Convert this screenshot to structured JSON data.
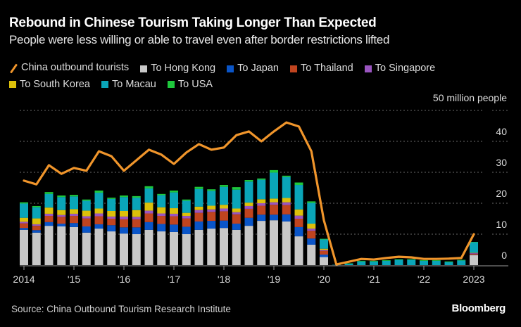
{
  "header": {
    "title": "Rebound in Chinese Tourism Taking Longer Than Expected",
    "subtitle": "People were less willing or able to travel even after border restrictions lifted"
  },
  "legend": [
    {
      "key": "line",
      "label": "China outbound tourists",
      "color": "#f0952b",
      "kind": "line"
    },
    {
      "key": "hk",
      "label": "To Hong Kong",
      "color": "#c8c8c8",
      "kind": "bar"
    },
    {
      "key": "japan",
      "label": "To Japan",
      "color": "#0a55c8",
      "kind": "bar"
    },
    {
      "key": "thailand",
      "label": "To Thailand",
      "color": "#c0441f",
      "kind": "bar"
    },
    {
      "key": "singapore",
      "label": "To Singapore",
      "color": "#9a55c0",
      "kind": "bar"
    },
    {
      "key": "korea",
      "label": "To South Korea",
      "color": "#dcc00a",
      "kind": "bar"
    },
    {
      "key": "macau",
      "label": "To Macau",
      "color": "#0aa5b8",
      "kind": "bar"
    },
    {
      "key": "usa",
      "label": "To USA",
      "color": "#1ec83c",
      "kind": "bar"
    }
  ],
  "footer": {
    "source": "Source: China Outbound Tourism Research Institute",
    "brand": "Bloomberg"
  },
  "chart_data": {
    "type": "bar",
    "subtype": "stacked bar with line overlay",
    "title": "Rebound in Chinese Tourism Taking Longer Than Expected",
    "subtitle": "People were less willing or able to travel even after border restrictions lifted",
    "xlabel": "",
    "ylabel": "million people",
    "unit_label": "50 million people",
    "ylim": [
      0,
      50
    ],
    "yticks": [
      0,
      10,
      20,
      30,
      40,
      50
    ],
    "ytick_labels": [
      "0",
      "10",
      "20",
      "30",
      "40",
      "50 million people"
    ],
    "grid": true,
    "legend_position": "top-left",
    "xtick_labels": [
      "2014",
      "'15",
      "'16",
      "'17",
      "'18",
      "'19",
      "'20",
      "'21",
      "'22",
      "2023"
    ],
    "categories": [
      "2014 Q1",
      "2014 Q2",
      "2014 Q3",
      "2014 Q4",
      "2015 Q1",
      "2015 Q2",
      "2015 Q3",
      "2015 Q4",
      "2016 Q1",
      "2016 Q2",
      "2016 Q3",
      "2016 Q4",
      "2017 Q1",
      "2017 Q2",
      "2017 Q3",
      "2017 Q4",
      "2018 Q1",
      "2018 Q2",
      "2018 Q3",
      "2018 Q4",
      "2019 Q1",
      "2019 Q2",
      "2019 Q3",
      "2019 Q4",
      "2020 Q1",
      "2020 Q2",
      "2020 Q3",
      "2020 Q4",
      "2021 Q1",
      "2021 Q2",
      "2021 Q3",
      "2021 Q4",
      "2022 Q1",
      "2022 Q2",
      "2022 Q3",
      "2022 Q4",
      "2023 Q1"
    ],
    "series": [
      {
        "name": "To Hong Kong",
        "key": "hk",
        "values": [
          11.4,
          10.5,
          12.7,
          12.5,
          12.3,
          10.5,
          11.8,
          10.9,
          10.2,
          10.0,
          11.4,
          10.9,
          10.7,
          10.0,
          11.4,
          11.8,
          12.0,
          11.4,
          12.7,
          14.3,
          14.5,
          14.1,
          9.3,
          6.6,
          2.6,
          0,
          0,
          0,
          0,
          0,
          0,
          0,
          0,
          0,
          0,
          0,
          3.2
        ]
      },
      {
        "name": "To Japan",
        "key": "japan",
        "values": [
          0.6,
          0.8,
          1.2,
          0.9,
          1.3,
          2.0,
          1.4,
          2.0,
          2.0,
          2.2,
          2.5,
          2.4,
          2.4,
          2.4,
          2.7,
          2.5,
          2.4,
          2.0,
          2.6,
          2.0,
          1.8,
          2.3,
          3.0,
          2.0,
          0.8,
          0,
          0,
          0,
          0,
          0,
          0,
          0,
          0,
          0,
          0,
          0,
          0.1
        ]
      },
      {
        "name": "To Thailand",
        "key": "thailand",
        "values": [
          1.5,
          1.4,
          2.0,
          2.2,
          2.3,
          2.6,
          2.6,
          2.1,
          2.6,
          2.6,
          2.8,
          2.6,
          2.7,
          2.7,
          2.8,
          2.9,
          3.0,
          3.0,
          2.9,
          2.9,
          3.2,
          3.0,
          2.7,
          2.5,
          1.2,
          0,
          0,
          0,
          0,
          0,
          0,
          0,
          0,
          0,
          0,
          0,
          0.4
        ]
      },
      {
        "name": "To Singapore",
        "key": "singapore",
        "values": [
          0.5,
          0.5,
          0.7,
          0.6,
          0.7,
          0.7,
          0.9,
          0.7,
          0.9,
          0.8,
          0.9,
          0.8,
          0.8,
          0.8,
          0.9,
          0.8,
          0.9,
          0.7,
          0.9,
          0.8,
          0.8,
          0.9,
          1.0,
          0.7,
          0.3,
          0,
          0,
          0,
          0,
          0,
          0,
          0,
          0,
          0,
          0,
          0,
          0.2
        ]
      },
      {
        "name": "To South Korea",
        "key": "korea",
        "values": [
          1.3,
          1.9,
          2.0,
          1.6,
          1.5,
          1.8,
          1.6,
          1.8,
          1.8,
          2.2,
          2.6,
          2.0,
          1.8,
          1.0,
          1.1,
          1.2,
          1.2,
          1.2,
          1.1,
          1.3,
          1.2,
          1.4,
          2.0,
          1.6,
          0.4,
          0,
          0,
          0,
          0,
          0,
          0,
          0,
          0,
          0,
          0,
          0,
          0.1
        ]
      },
      {
        "name": "To Macau",
        "key": "macau",
        "values": [
          4.6,
          3.6,
          4.4,
          4.2,
          4.1,
          3.2,
          5.1,
          3.9,
          4.5,
          4.0,
          4.6,
          3.9,
          5.1,
          3.9,
          5.7,
          4.8,
          5.8,
          6.1,
          6.8,
          6.3,
          8.4,
          6.8,
          7.9,
          6.7,
          3.0,
          0.1,
          0.5,
          1.2,
          1.2,
          1.4,
          1.7,
          1.7,
          1.4,
          1.4,
          1.0,
          1.5,
          3.4
        ]
      },
      {
        "name": "To USA",
        "key": "usa",
        "values": [
          0.4,
          0.4,
          0.6,
          0.5,
          0.5,
          0.4,
          0.7,
          0.4,
          0.5,
          0.5,
          0.7,
          0.4,
          0.6,
          0.4,
          0.7,
          0.5,
          0.6,
          0.8,
          0.5,
          0.4,
          0.8,
          0.4,
          0.8,
          0.5,
          0.2,
          0,
          0.1,
          0.2,
          0.2,
          0.2,
          0.2,
          0.2,
          0.2,
          0.2,
          0.2,
          0.2,
          0.1
        ]
      }
    ],
    "line": {
      "name": "China outbound tourists",
      "values": [
        27.3,
        26.1,
        32.3,
        29.5,
        31.4,
        30.5,
        36.8,
        35.2,
        30.5,
        33.9,
        37.3,
        35.7,
        32.7,
        36.4,
        39.1,
        37.3,
        38.0,
        42.0,
        43.2,
        40.0,
        43.2,
        46.1,
        44.8,
        36.8,
        14.5,
        0.2,
        1.1,
        2.0,
        1.8,
        2.3,
        2.7,
        2.5,
        2.0,
        2.0,
        2.1,
        2.3,
        10.0
      ]
    }
  }
}
